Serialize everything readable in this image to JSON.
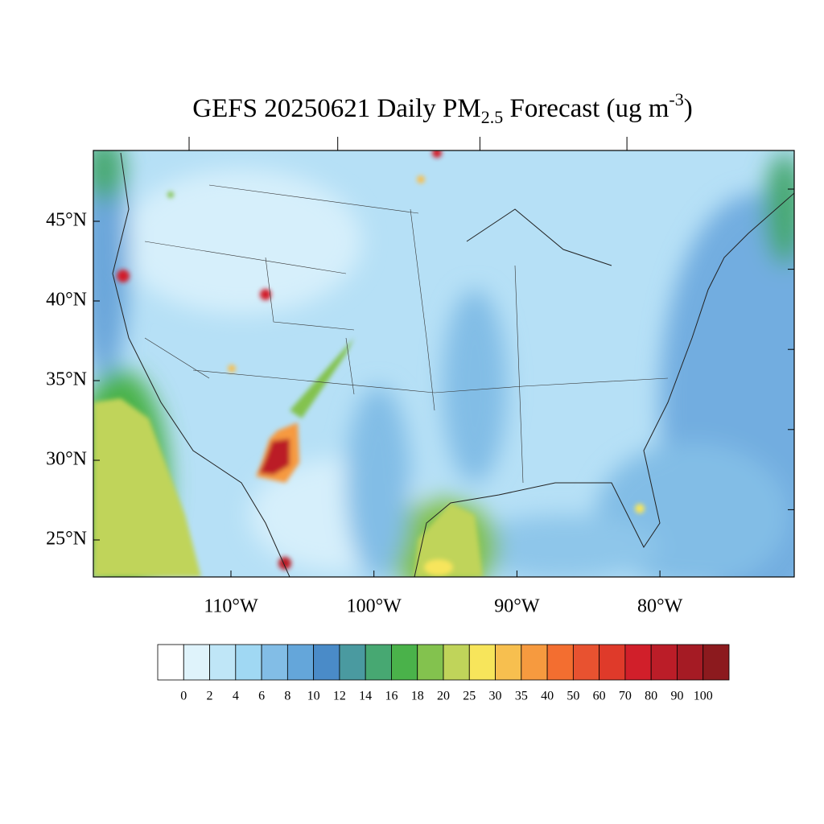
{
  "header": {
    "title_main": "GEFS 20250621 Daily PM",
    "title_subscript": "2.5",
    "title_middle": " Forecast (ug m",
    "title_superscript": "-3",
    "title_end": ")"
  },
  "map": {
    "lat_ticks": [
      {
        "value": 45,
        "label": "45°N"
      },
      {
        "value": 40,
        "label": "40°N"
      },
      {
        "value": 35,
        "label": "35°N"
      },
      {
        "value": 30,
        "label": "30°N"
      },
      {
        "value": 25,
        "label": "25°N"
      }
    ],
    "lon_ticks": [
      {
        "value": -110,
        "label": "110°W"
      },
      {
        "value": -100,
        "label": "100°W"
      },
      {
        "value": -90,
        "label": "90°W"
      },
      {
        "value": -80,
        "label": "80°W"
      }
    ]
  },
  "colorbar": {
    "levels": [
      0,
      2,
      4,
      6,
      8,
      10,
      12,
      14,
      16,
      18,
      20,
      25,
      30,
      35,
      40,
      50,
      60,
      70,
      80,
      90,
      100
    ],
    "colors": [
      "#ffffff",
      "#dff3fb",
      "#bfe6f7",
      "#a0d8f3",
      "#82bde6",
      "#64a6da",
      "#4a8bc8",
      "#4a9aa0",
      "#47a872",
      "#4ab24a",
      "#83c24e",
      "#c0d45a",
      "#f7e55b",
      "#f7bf4f",
      "#f69a3f",
      "#f36e30",
      "#e85230",
      "#df3a2a",
      "#d11f2a",
      "#bb1d28",
      "#a51b24",
      "#8c1a1e"
    ]
  }
}
